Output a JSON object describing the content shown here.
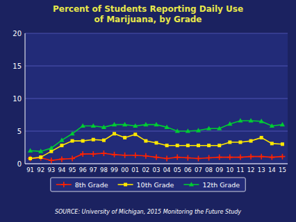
{
  "chart_data": {
    "type": "line",
    "title": "Percent of Students Reporting Daily Use\nof Marijuana, by Grade",
    "categories": [
      "91",
      "92",
      "93",
      "94",
      "95",
      "96",
      "97",
      "98",
      "99",
      "00",
      "01",
      "02",
      "03",
      "04",
      "05",
      "06",
      "07",
      "08",
      "09",
      "10",
      "11",
      "12",
      "13",
      "14",
      "15"
    ],
    "series": [
      {
        "name": "8th Grade",
        "color": "#FF2200",
        "marker": "plus",
        "values": [
          0.8,
          0.9,
          0.5,
          0.7,
          0.8,
          1.5,
          1.5,
          1.6,
          1.4,
          1.3,
          1.3,
          1.2,
          1.0,
          0.8,
          1.0,
          0.9,
          0.8,
          0.9,
          1.0,
          1.0,
          1.0,
          1.1,
          1.1,
          1.0,
          1.1
        ]
      },
      {
        "name": "10th Grade",
        "color": "#FFE800",
        "marker": "square",
        "values": [
          0.8,
          1.0,
          1.9,
          2.8,
          3.5,
          3.5,
          3.7,
          3.6,
          4.6,
          4.0,
          4.5,
          3.5,
          3.2,
          2.8,
          2.8,
          2.8,
          2.8,
          2.8,
          2.8,
          3.3,
          3.3,
          3.5,
          4.0,
          3.1,
          3.0
        ]
      },
      {
        "name": "12th Grade",
        "color": "#00CC33",
        "marker": "triangle",
        "values": [
          2.0,
          1.9,
          2.4,
          3.6,
          4.6,
          5.8,
          5.8,
          5.6,
          6.0,
          6.0,
          5.8,
          6.0,
          6.0,
          5.6,
          5.0,
          5.0,
          5.1,
          5.4,
          5.4,
          6.1,
          6.6,
          6.6,
          6.5,
          5.8,
          6.0
        ]
      }
    ],
    "ylim": [
      0,
      20
    ],
    "yticks": [
      0,
      5,
      10,
      15,
      20
    ],
    "grid": true,
    "legend": "bottom",
    "annotations": [
      "SOURCE: University of Michigan, 2015 Monitoring the Future Study"
    ]
  }
}
